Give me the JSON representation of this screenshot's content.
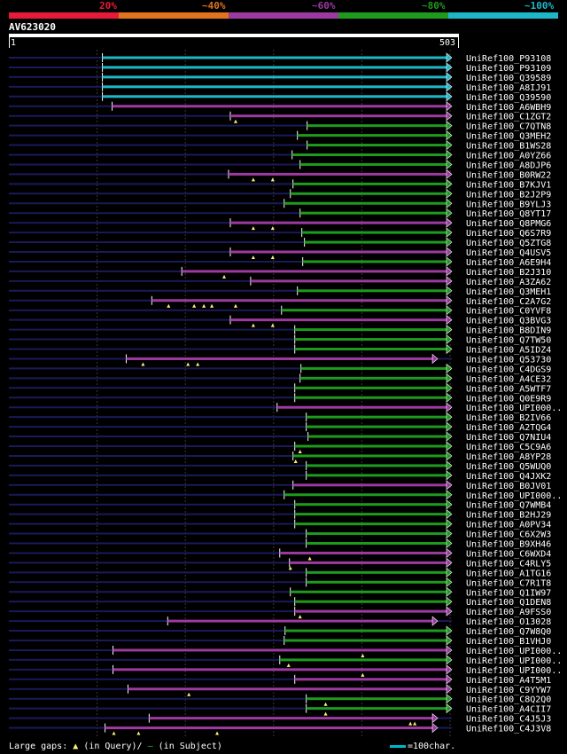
{
  "legend": {
    "labels": [
      "20%",
      "~40%",
      "~60%",
      "~80%",
      "~100%"
    ],
    "colors": {
      "20": "#e81a3a",
      "40": "#e1731f",
      "60": "#9c3aa0",
      "80": "#1e9a1e",
      "100": "#1db8c8"
    }
  },
  "query": {
    "id": "AV623020",
    "start": "1",
    "end": "503"
  },
  "footer": {
    "prefix": "Large gaps:",
    "query_marker": "▲",
    "query_text": "(in Query)/",
    "subject_marker": "—",
    "subject_text": "(in Subject)",
    "scale_text": "=100char."
  },
  "chart_data": {
    "type": "alignment",
    "title": "AV623020",
    "query_length": 503,
    "hits": [
      {
        "name": "UniRef100_P93108",
        "start": 107,
        "end": 503,
        "cls": "100",
        "gaps": []
      },
      {
        "name": "UniRef100_P93109",
        "start": 107,
        "end": 503,
        "cls": "100",
        "gaps": []
      },
      {
        "name": "UniRef100_Q39589",
        "start": 107,
        "end": 503,
        "cls": "100",
        "gaps": []
      },
      {
        "name": "UniRef100_A8IJ91",
        "start": 107,
        "end": 503,
        "cls": "100",
        "gaps": []
      },
      {
        "name": "UniRef100_Q39590",
        "start": 107,
        "end": 503,
        "cls": "100",
        "gaps": []
      },
      {
        "name": "UniRef100_A6WBH9",
        "start": 118,
        "end": 503,
        "cls": "60",
        "gaps": []
      },
      {
        "name": "UniRef100_C1ZGT2",
        "start": 252,
        "end": 503,
        "cls": "60",
        "gaps": [
          258
        ]
      },
      {
        "name": "UniRef100_C7QTN8",
        "start": 339,
        "end": 503,
        "cls": "80",
        "gaps": []
      },
      {
        "name": "UniRef100_Q3MEH2",
        "start": 328,
        "end": 503,
        "cls": "80",
        "gaps": []
      },
      {
        "name": "UniRef100_B1WS28",
        "start": 339,
        "end": 503,
        "cls": "80",
        "gaps": []
      },
      {
        "name": "UniRef100_A0YZ66",
        "start": 322,
        "end": 503,
        "cls": "80",
        "gaps": []
      },
      {
        "name": "UniRef100_A8DJP6",
        "start": 331,
        "end": 503,
        "cls": "80",
        "gaps": []
      },
      {
        "name": "UniRef100_B0RW22",
        "start": 250,
        "end": 503,
        "cls": "60",
        "gaps": [
          278,
          300
        ]
      },
      {
        "name": "UniRef100_B7KJV1",
        "start": 323,
        "end": 503,
        "cls": "80",
        "gaps": []
      },
      {
        "name": "UniRef100_B2J2P9",
        "start": 320,
        "end": 503,
        "cls": "80",
        "gaps": []
      },
      {
        "name": "UniRef100_B9YLJ3",
        "start": 313,
        "end": 503,
        "cls": "80",
        "gaps": []
      },
      {
        "name": "UniRef100_Q8YT17",
        "start": 331,
        "end": 503,
        "cls": "80",
        "gaps": []
      },
      {
        "name": "UniRef100_Q8PMG6",
        "start": 252,
        "end": 503,
        "cls": "60",
        "gaps": [
          278,
          300
        ]
      },
      {
        "name": "UniRef100_Q6S7R9",
        "start": 333,
        "end": 503,
        "cls": "80",
        "gaps": []
      },
      {
        "name": "UniRef100_Q5ZTG8",
        "start": 336,
        "end": 503,
        "cls": "80",
        "gaps": []
      },
      {
        "name": "UniRef100_Q4USV5",
        "start": 252,
        "end": 503,
        "cls": "60",
        "gaps": [
          278,
          300
        ]
      },
      {
        "name": "UniRef100_A6E9H4",
        "start": 334,
        "end": 503,
        "cls": "80",
        "gaps": []
      },
      {
        "name": "UniRef100_B2J310",
        "start": 197,
        "end": 503,
        "cls": "60",
        "gaps": [
          245
        ]
      },
      {
        "name": "UniRef100_A3ZA62",
        "start": 275,
        "end": 503,
        "cls": "60",
        "gaps": []
      },
      {
        "name": "UniRef100_Q3MEH1",
        "start": 328,
        "end": 503,
        "cls": "80",
        "gaps": []
      },
      {
        "name": "UniRef100_C2A7G2",
        "start": 163,
        "end": 503,
        "cls": "60",
        "gaps": [
          182,
          211,
          222,
          231,
          258
        ]
      },
      {
        "name": "UniRef100_C0YVF8",
        "start": 310,
        "end": 503,
        "cls": "80",
        "gaps": []
      },
      {
        "name": "UniRef100_Q3BVG3",
        "start": 252,
        "end": 503,
        "cls": "60",
        "gaps": [
          278,
          300
        ]
      },
      {
        "name": "UniRef100_B8DIN9",
        "start": 325,
        "end": 503,
        "cls": "80",
        "gaps": []
      },
      {
        "name": "UniRef100_Q7TW50",
        "start": 325,
        "end": 503,
        "cls": "80",
        "gaps": []
      },
      {
        "name": "UniRef100_A5IDZ4",
        "start": 325,
        "end": 503,
        "cls": "80",
        "gaps": []
      },
      {
        "name": "UniRef100_Q53730",
        "start": 134,
        "end": 487,
        "cls": "60",
        "gaps": [
          153,
          204,
          215
        ]
      },
      {
        "name": "UniRef100_C4DGS9",
        "start": 332,
        "end": 503,
        "cls": "80",
        "gaps": []
      },
      {
        "name": "UniRef100_A4CE32",
        "start": 331,
        "end": 503,
        "cls": "80",
        "gaps": []
      },
      {
        "name": "UniRef100_A5WTF7",
        "start": 325,
        "end": 503,
        "cls": "80",
        "gaps": []
      },
      {
        "name": "UniRef100_Q0E9R9",
        "start": 325,
        "end": 503,
        "cls": "80",
        "gaps": []
      },
      {
        "name": "UniRef100_UPI000..",
        "start": 305,
        "end": 503,
        "cls": "60",
        "gaps": []
      },
      {
        "name": "UniRef100_B2IV66",
        "start": 338,
        "end": 503,
        "cls": "80",
        "gaps": []
      },
      {
        "name": "UniRef100_A2TQG4",
        "start": 338,
        "end": 503,
        "cls": "80",
        "gaps": []
      },
      {
        "name": "UniRef100_Q7NIU4",
        "start": 340,
        "end": 503,
        "cls": "80",
        "gaps": []
      },
      {
        "name": "UniRef100_C5C9A6",
        "start": 325,
        "end": 503,
        "cls": "80",
        "gaps": [
          331
        ]
      },
      {
        "name": "UniRef100_A8YP28",
        "start": 323,
        "end": 503,
        "cls": "80",
        "gaps": [
          326
        ]
      },
      {
        "name": "UniRef100_Q5WUQ0",
        "start": 338,
        "end": 503,
        "cls": "80",
        "gaps": []
      },
      {
        "name": "UniRef100_Q4JXK2",
        "start": 338,
        "end": 503,
        "cls": "80",
        "gaps": []
      },
      {
        "name": "UniRef100_B0JV01",
        "start": 323,
        "end": 503,
        "cls": "60",
        "gaps": []
      },
      {
        "name": "UniRef100_UPI000..",
        "start": 313,
        "end": 503,
        "cls": "80",
        "gaps": []
      },
      {
        "name": "UniRef100_Q7WMB4",
        "start": 325,
        "end": 503,
        "cls": "80",
        "gaps": []
      },
      {
        "name": "UniRef100_B2HJ29",
        "start": 325,
        "end": 503,
        "cls": "80",
        "gaps": []
      },
      {
        "name": "UniRef100_A0PV34",
        "start": 325,
        "end": 503,
        "cls": "80",
        "gaps": []
      },
      {
        "name": "UniRef100_C6X2W3",
        "start": 338,
        "end": 503,
        "cls": "80",
        "gaps": []
      },
      {
        "name": "UniRef100_B9XH46",
        "start": 338,
        "end": 503,
        "cls": "80",
        "gaps": []
      },
      {
        "name": "UniRef100_C6WXD4",
        "start": 308,
        "end": 503,
        "cls": "60",
        "gaps": [
          342
        ]
      },
      {
        "name": "UniRef100_C4RLY5",
        "start": 319,
        "end": 503,
        "cls": "60",
        "gaps": [
          320
        ]
      },
      {
        "name": "UniRef100_A1TG16",
        "start": 338,
        "end": 503,
        "cls": "80",
        "gaps": []
      },
      {
        "name": "UniRef100_C7R1T8",
        "start": 338,
        "end": 503,
        "cls": "80",
        "gaps": []
      },
      {
        "name": "UniRef100_Q1IW97",
        "start": 320,
        "end": 503,
        "cls": "80",
        "gaps": []
      },
      {
        "name": "UniRef100_Q1DEN8",
        "start": 325,
        "end": 503,
        "cls": "80",
        "gaps": []
      },
      {
        "name": "UniRef100_A9FSS0",
        "start": 325,
        "end": 503,
        "cls": "60",
        "gaps": [
          331
        ]
      },
      {
        "name": "UniRef100_O13028",
        "start": 181,
        "end": 487,
        "cls": "60",
        "gaps": []
      },
      {
        "name": "UniRef100_Q7W8Q0",
        "start": 314,
        "end": 503,
        "cls": "80",
        "gaps": []
      },
      {
        "name": "UniRef100_B1VHJ0",
        "start": 313,
        "end": 503,
        "cls": "80",
        "gaps": []
      },
      {
        "name": "UniRef100_UPI000..",
        "start": 119,
        "end": 503,
        "cls": "60",
        "gaps": [
          402
        ]
      },
      {
        "name": "UniRef100_UPI000..",
        "start": 308,
        "end": 503,
        "cls": "80",
        "gaps": [
          318
        ]
      },
      {
        "name": "UniRef100_UPI000..",
        "start": 119,
        "end": 503,
        "cls": "60",
        "gaps": [
          402
        ]
      },
      {
        "name": "UniRef100_A4T5M1",
        "start": 325,
        "end": 503,
        "cls": "60",
        "gaps": []
      },
      {
        "name": "UniRef100_C9YYW7",
        "start": 136,
        "end": 503,
        "cls": "60",
        "gaps": [
          205
        ]
      },
      {
        "name": "UniRef100_C8Q2Q0",
        "start": 338,
        "end": 503,
        "cls": "80",
        "gaps": [
          360
        ]
      },
      {
        "name": "UniRef100_A4CII7",
        "start": 338,
        "end": 503,
        "cls": "80",
        "gaps": [
          360
        ]
      },
      {
        "name": "UniRef100_C4J5J3",
        "start": 160,
        "end": 487,
        "cls": "60",
        "gaps": [
          456,
          461
        ]
      },
      {
        "name": "UniRef100_C4J3V8",
        "start": 110,
        "end": 487,
        "cls": "60",
        "gaps": [
          120,
          148,
          237
        ]
      }
    ]
  }
}
